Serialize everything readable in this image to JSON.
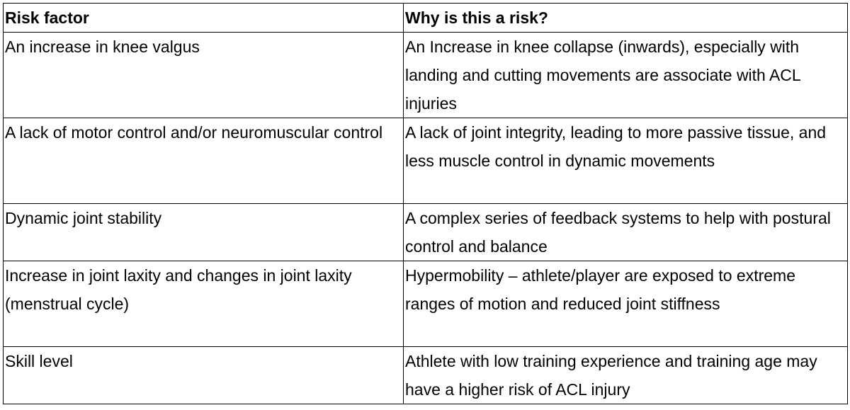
{
  "table": {
    "header": [
      "Risk factor",
      "Why is this a risk?"
    ],
    "rows": [
      [
        "An increase in knee valgus",
        "An Increase in knee collapse (inwards), especially with landing and cutting movements are associate with ACL injuries"
      ],
      [
        "A lack of motor control and/or neuromuscular control",
        "A lack of joint integrity, leading to more passive tissue, and less muscle control in dynamic movements"
      ],
      [
        "Dynamic joint stability",
        "A complex series of feedback systems to help with postural control and balance"
      ],
      [
        "Increase in joint laxity and changes in joint laxity (menstrual cycle)",
        "Hypermobility – athlete/player are exposed to extreme ranges of motion and reduced joint stiffness"
      ],
      [
        "Skill level",
        "Athlete with low training experience and training age may have a higher risk of ACL injury"
      ]
    ]
  }
}
